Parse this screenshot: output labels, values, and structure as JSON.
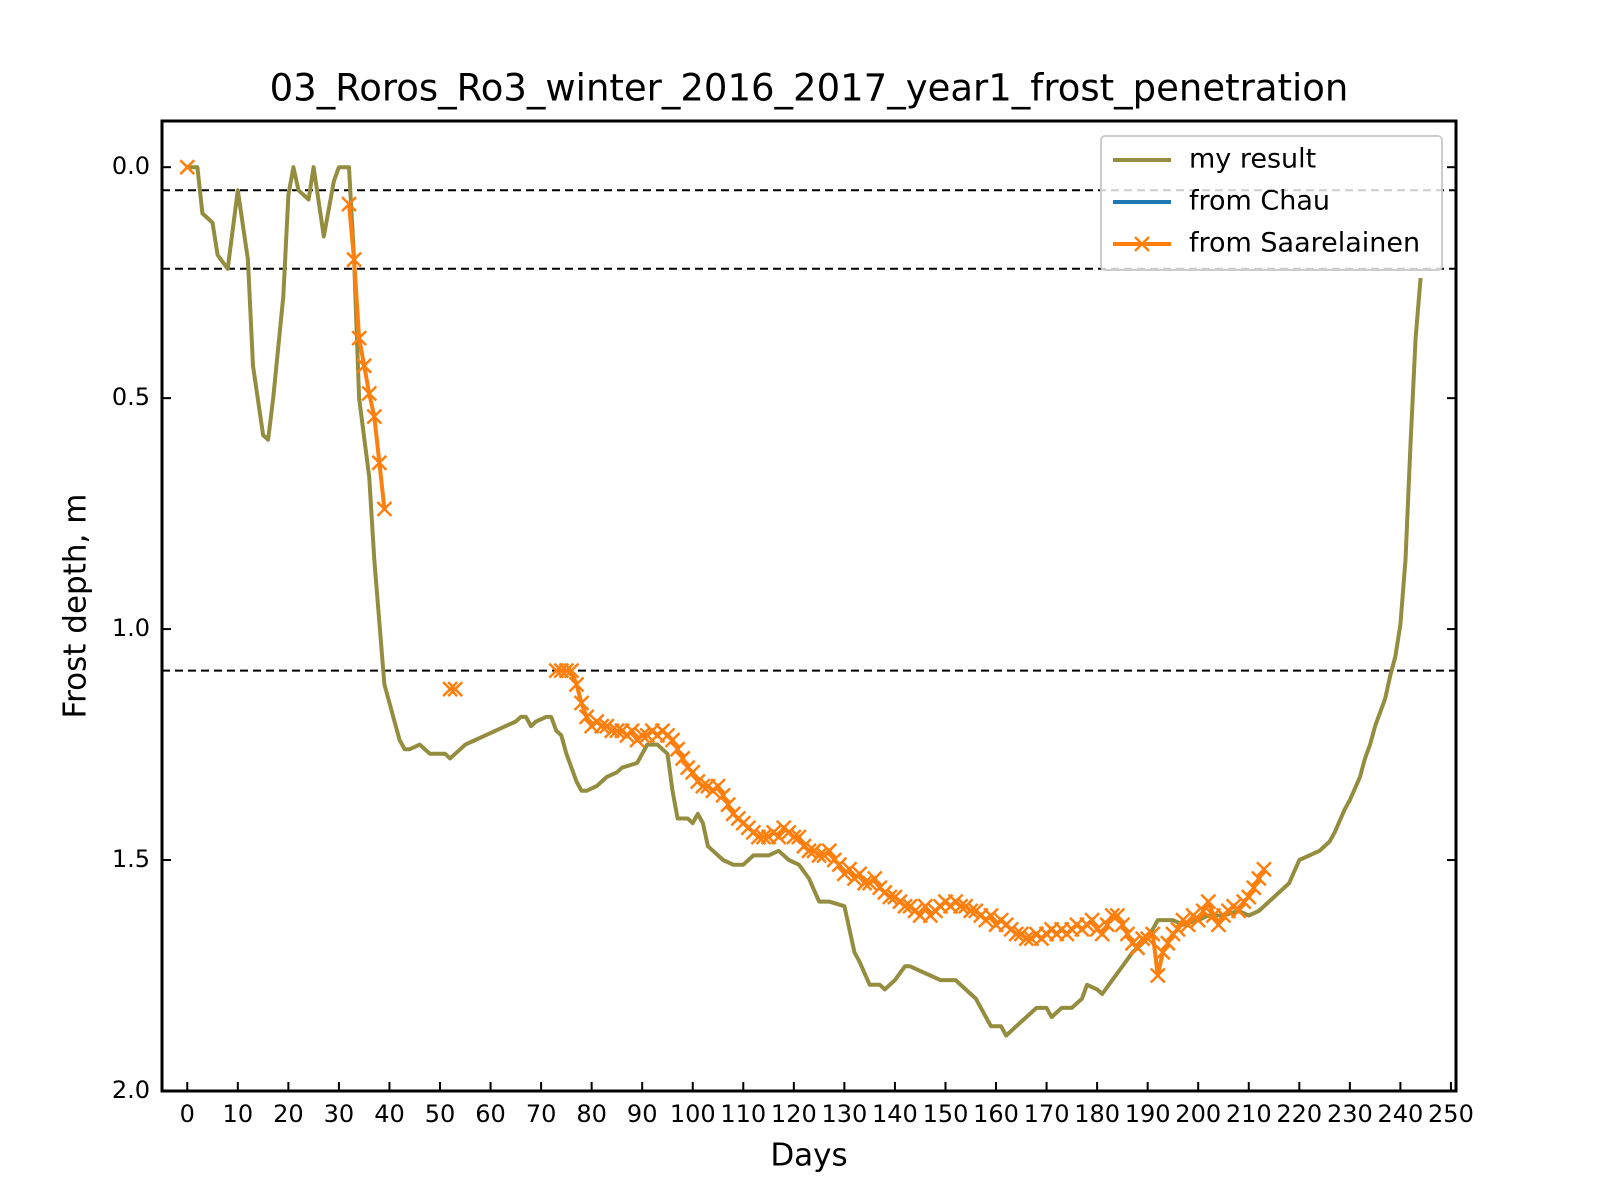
{
  "chart_data": {
    "type": "line",
    "title": "03_Roros_Ro3_winter_2016_2017_year1_frost_penetration",
    "xlabel": "Days",
    "ylabel": "Frost depth, m",
    "xlim": [
      -5,
      251
    ],
    "ylim": [
      -0.1,
      2.0
    ],
    "y_inverted": true,
    "xticks": [
      0,
      10,
      20,
      30,
      40,
      50,
      60,
      70,
      80,
      90,
      100,
      110,
      120,
      130,
      140,
      150,
      160,
      170,
      180,
      190,
      200,
      210,
      220,
      230,
      240,
      250
    ],
    "yticks": [
      {
        "value": 0,
        "label": "0.0"
      },
      {
        "value": 0.5,
        "label": "0.5"
      },
      {
        "value": 1.0,
        "label": "1.0"
      },
      {
        "value": 1.5,
        "label": "1.5"
      },
      {
        "value": 2.0,
        "label": "2.0"
      }
    ],
    "hlines": [
      0.05,
      0.22,
      1.09
    ],
    "hline_color": "#000000",
    "legend": "upper right",
    "series": [
      {
        "name": "my result",
        "color": "#948d3f",
        "marker": "none",
        "x": [
          0,
          2,
          3,
          5,
          6,
          8,
          10,
          12,
          13,
          15,
          16,
          17,
          19,
          20,
          21,
          22,
          24,
          25,
          27,
          29,
          30,
          31,
          32,
          33,
          34,
          36,
          37,
          39,
          40,
          41,
          42,
          43,
          44,
          46,
          48,
          50,
          51,
          52,
          53,
          55,
          57,
          59,
          61,
          63,
          65,
          66,
          67,
          68,
          69,
          71,
          72,
          73,
          74,
          75,
          77,
          78,
          79,
          81,
          83,
          85,
          86,
          89,
          90,
          91,
          93,
          95,
          96,
          97,
          98,
          99,
          100,
          101,
          102,
          103,
          105,
          106,
          108,
          110,
          112,
          113,
          115,
          117,
          119,
          121,
          123,
          125,
          127,
          130,
          132,
          133,
          135,
          137,
          138,
          140,
          142,
          143,
          145,
          147,
          149,
          152,
          154,
          156,
          158,
          159,
          161,
          162,
          164,
          166,
          168,
          170,
          171,
          173,
          175,
          177,
          178,
          180,
          181,
          183,
          185,
          187,
          189,
          191,
          192,
          195,
          197,
          200,
          202,
          205,
          208,
          210,
          212,
          214,
          216,
          218,
          220,
          222,
          224,
          226,
          227,
          229,
          230,
          232,
          233,
          234,
          235,
          236,
          237,
          238,
          239,
          240,
          241,
          242,
          243,
          244
        ],
        "values": [
          0.0,
          0.0,
          0.1,
          0.12,
          0.19,
          0.22,
          0.05,
          0.2,
          0.43,
          0.58,
          0.59,
          0.5,
          0.28,
          0.06,
          0.0,
          0.05,
          0.07,
          0.0,
          0.15,
          0.03,
          0.0,
          0.0,
          0.0,
          0.2,
          0.5,
          0.67,
          0.85,
          1.12,
          1.16,
          1.2,
          1.24,
          1.26,
          1.26,
          1.25,
          1.27,
          1.27,
          1.27,
          1.28,
          1.27,
          1.25,
          1.24,
          1.23,
          1.22,
          1.21,
          1.2,
          1.19,
          1.19,
          1.21,
          1.2,
          1.19,
          1.19,
          1.22,
          1.23,
          1.27,
          1.33,
          1.35,
          1.35,
          1.34,
          1.32,
          1.31,
          1.3,
          1.29,
          1.27,
          1.25,
          1.25,
          1.27,
          1.35,
          1.41,
          1.41,
          1.41,
          1.42,
          1.4,
          1.42,
          1.47,
          1.49,
          1.5,
          1.51,
          1.51,
          1.49,
          1.49,
          1.49,
          1.48,
          1.5,
          1.51,
          1.54,
          1.59,
          1.59,
          1.6,
          1.7,
          1.72,
          1.77,
          1.77,
          1.78,
          1.76,
          1.73,
          1.73,
          1.74,
          1.75,
          1.76,
          1.76,
          1.78,
          1.8,
          1.84,
          1.86,
          1.86,
          1.88,
          1.86,
          1.84,
          1.82,
          1.82,
          1.84,
          1.82,
          1.82,
          1.8,
          1.77,
          1.78,
          1.79,
          1.76,
          1.73,
          1.7,
          1.68,
          1.65,
          1.63,
          1.63,
          1.64,
          1.63,
          1.62,
          1.62,
          1.61,
          1.62,
          1.61,
          1.59,
          1.57,
          1.55,
          1.5,
          1.49,
          1.48,
          1.46,
          1.44,
          1.39,
          1.37,
          1.32,
          1.28,
          1.25,
          1.21,
          1.18,
          1.15,
          1.1,
          1.06,
          0.99,
          0.85,
          0.6,
          0.37,
          0.24
        ]
      },
      {
        "name": "from Chau",
        "color": "#1f77b4",
        "marker": "none",
        "x": [],
        "values": []
      },
      {
        "name": "from Saarelainen",
        "color": "#ff7f0e",
        "marker": "x",
        "x": [
          0,
          1,
          32,
          33,
          34,
          35,
          36,
          37,
          38,
          39,
          40,
          52,
          53,
          54,
          73,
          74,
          75,
          76,
          77,
          78,
          79,
          80,
          81,
          82,
          83,
          84,
          85,
          86,
          87,
          88,
          89,
          90,
          91,
          92,
          93,
          94,
          95,
          96,
          97,
          98,
          99,
          100,
          101,
          102,
          103,
          104,
          105,
          106,
          107,
          108,
          109,
          110,
          111,
          112,
          113,
          114,
          115,
          116,
          117,
          118,
          119,
          120,
          121,
          122,
          123,
          124,
          125,
          126,
          127,
          128,
          129,
          130,
          131,
          132,
          133,
          134,
          135,
          136,
          137,
          138,
          139,
          140,
          141,
          142,
          143,
          144,
          145,
          146,
          147,
          148,
          149,
          150,
          151,
          152,
          153,
          154,
          155,
          156,
          157,
          158,
          159,
          160,
          161,
          162,
          163,
          164,
          165,
          166,
          167,
          168,
          169,
          170,
          171,
          172,
          173,
          174,
          175,
          176,
          177,
          178,
          179,
          180,
          181,
          182,
          183,
          184,
          185,
          186,
          187,
          188,
          189,
          190,
          191,
          192,
          193,
          194,
          195,
          196,
          197,
          198,
          199,
          200,
          201,
          202,
          203,
          204,
          205,
          206,
          207,
          208,
          209,
          210,
          211,
          212,
          213
        ],
        "values": [
          0.0,
          null,
          0.08,
          0.2,
          0.37,
          0.43,
          0.49,
          0.54,
          0.64,
          0.74,
          null,
          1.13,
          1.13,
          null,
          1.09,
          1.09,
          1.09,
          1.09,
          1.12,
          1.16,
          1.19,
          1.21,
          1.2,
          1.21,
          1.21,
          1.22,
          1.22,
          1.22,
          1.23,
          1.22,
          1.24,
          1.23,
          1.23,
          1.22,
          1.23,
          1.22,
          1.23,
          1.24,
          1.26,
          1.28,
          1.3,
          1.31,
          1.33,
          1.34,
          1.34,
          1.35,
          1.34,
          1.36,
          1.38,
          1.4,
          1.41,
          1.42,
          1.43,
          1.44,
          1.45,
          1.45,
          1.45,
          1.44,
          1.45,
          1.43,
          1.44,
          1.45,
          1.45,
          1.47,
          1.48,
          1.48,
          1.49,
          1.49,
          1.48,
          1.5,
          1.51,
          1.53,
          1.52,
          1.54,
          1.53,
          1.55,
          1.55,
          1.54,
          1.56,
          1.57,
          1.58,
          1.58,
          1.59,
          1.6,
          1.6,
          1.61,
          1.62,
          1.6,
          1.62,
          1.61,
          1.6,
          1.59,
          1.6,
          1.59,
          1.6,
          1.6,
          1.61,
          1.61,
          1.62,
          1.63,
          1.62,
          1.64,
          1.63,
          1.64,
          1.65,
          1.66,
          1.66,
          1.67,
          1.67,
          1.66,
          1.67,
          1.66,
          1.65,
          1.66,
          1.65,
          1.66,
          1.65,
          1.64,
          1.65,
          1.64,
          1.63,
          1.65,
          1.66,
          1.64,
          1.62,
          1.62,
          1.64,
          1.66,
          1.68,
          1.69,
          1.67,
          1.67,
          1.66,
          1.75,
          1.7,
          1.68,
          1.66,
          1.65,
          1.63,
          1.64,
          1.62,
          1.63,
          1.61,
          1.59,
          1.62,
          1.64,
          1.62,
          1.61,
          1.6,
          1.61,
          1.59,
          1.58,
          1.56,
          1.54,
          1.52
        ]
      }
    ]
  }
}
